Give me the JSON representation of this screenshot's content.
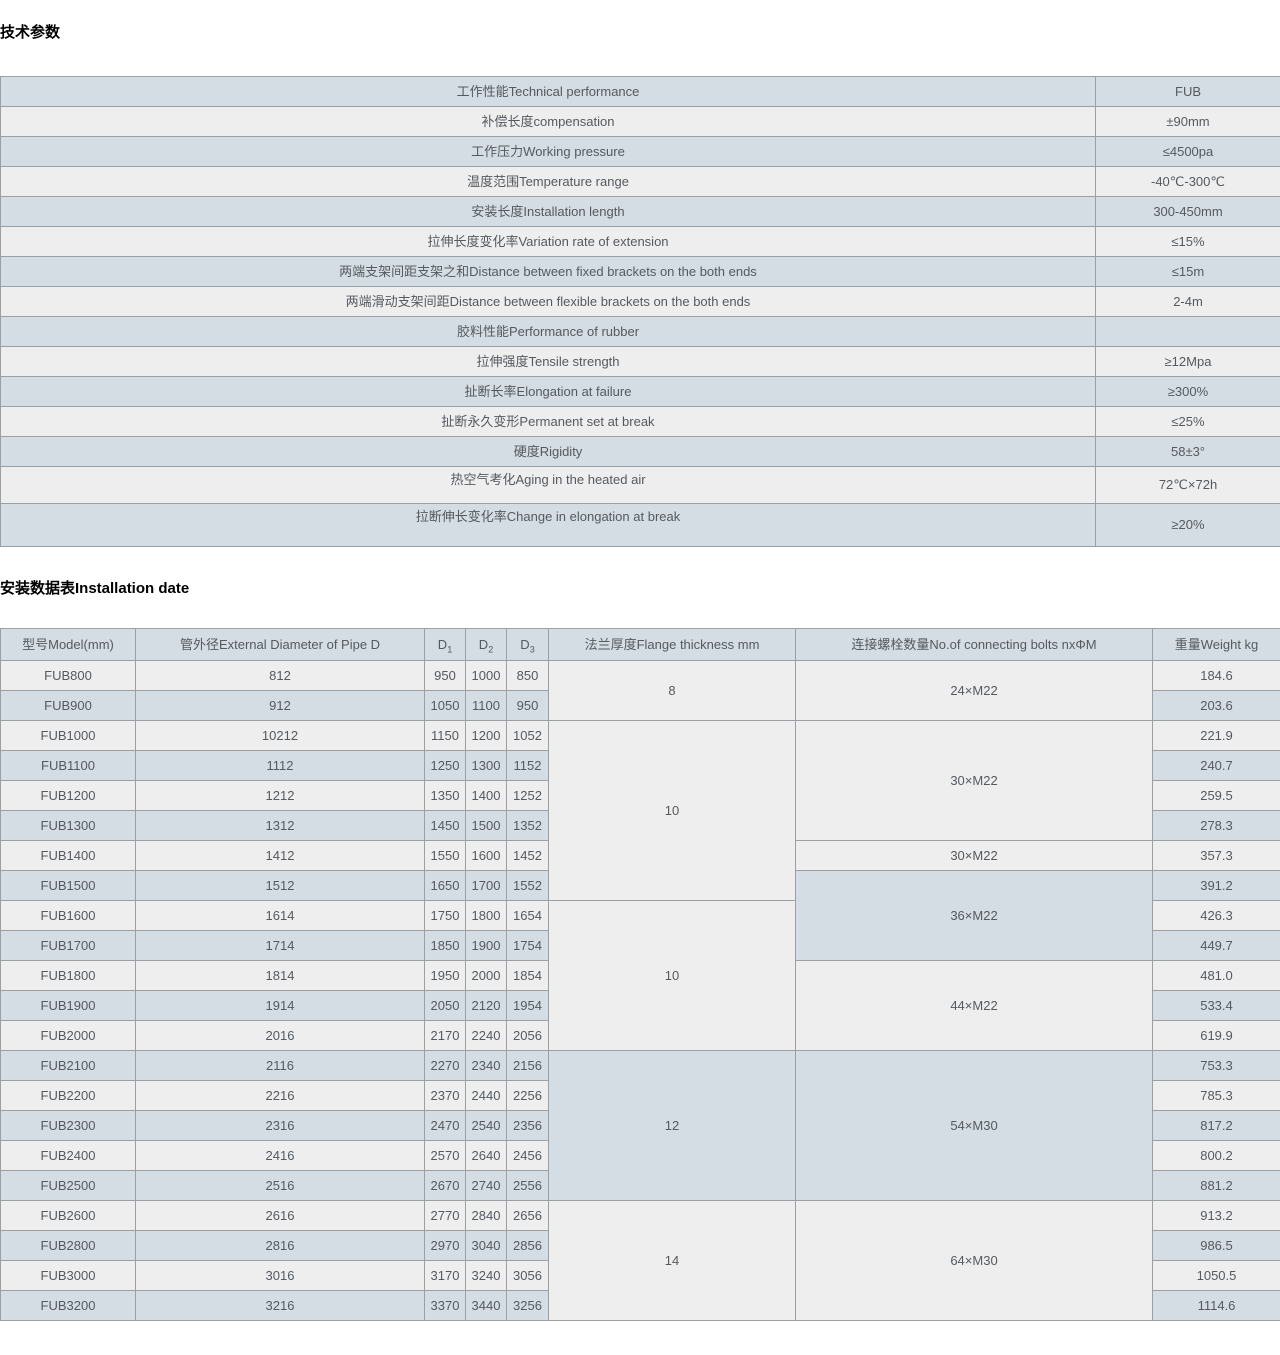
{
  "page": {
    "tech_title": "技术参数",
    "install_title": "安装数据表Installation date"
  },
  "colors": {
    "row_blue": "#d3dde3",
    "row_light": "#eeeeee",
    "border": "#9aa0a4",
    "text": "#555a5f"
  },
  "tech_table": {
    "rows": [
      {
        "label": "工作性能Technical performance",
        "value": "FUB"
      },
      {
        "label": "补偿长度compensation",
        "value": "±90mm"
      },
      {
        "label": "工作压力Working pressure",
        "value": "≤4500pa"
      },
      {
        "label": "温度范围Temperature range",
        "value": "-40℃-300℃"
      },
      {
        "label": "安装长度Installation length",
        "value": "300-450mm"
      },
      {
        "label": "拉伸长度变化率Variation rate of extension",
        "value": "≤15%"
      },
      {
        "label": "两端支架间距支架之和Distance between fixed brackets on the both ends",
        "value": "≤15m"
      },
      {
        "label": "两端滑动支架间距Distance between flexible brackets on the both ends",
        "value": "2-4m"
      },
      {
        "label": "胶料性能Performance of rubber",
        "value": ""
      },
      {
        "label": "拉伸强度Tensile strength",
        "value": "≥12Mpa"
      },
      {
        "label": "扯断长率Elongation at failure",
        "value": "≥300%"
      },
      {
        "label": "扯断永久变形Permanent set at break",
        "value": "≤25%"
      },
      {
        "label": "硬度Rigidity",
        "value": "58±3°"
      },
      {
        "label": "热空气考化Aging in the heated air",
        "value": "72℃×72h"
      },
      {
        "label": "拉断伸长变化率Change in elongation at break",
        "value": "≥20%"
      }
    ]
  },
  "install_table": {
    "columns": [
      "型号Model(mm)",
      "管外径External Diameter of Pipe D",
      "D1",
      "D2",
      "D3",
      "法兰厚度Flange thickness mm",
      "连接螺栓数量No.of connecting bolts nxΦM",
      "重量Weight kg"
    ],
    "rows": [
      {
        "model": "FUB800",
        "pipe_d": "812",
        "d1": "950",
        "d2": "1000",
        "d3": "850",
        "weight": "184.6"
      },
      {
        "model": "FUB900",
        "pipe_d": "912",
        "d1": "1050",
        "d2": "1100",
        "d3": "950",
        "weight": "203.6"
      },
      {
        "model": "FUB1000",
        "pipe_d": "10212",
        "d1": "1150",
        "d2": "1200",
        "d3": "1052",
        "weight": "221.9"
      },
      {
        "model": "FUB1100",
        "pipe_d": "1112",
        "d1": "1250",
        "d2": "1300",
        "d3": "1152",
        "weight": "240.7"
      },
      {
        "model": "FUB1200",
        "pipe_d": "1212",
        "d1": "1350",
        "d2": "1400",
        "d3": "1252",
        "weight": "259.5"
      },
      {
        "model": "FUB1300",
        "pipe_d": "1312",
        "d1": "1450",
        "d2": "1500",
        "d3": "1352",
        "weight": "278.3"
      },
      {
        "model": "FUB1400",
        "pipe_d": "1412",
        "d1": "1550",
        "d2": "1600",
        "d3": "1452",
        "weight": "357.3"
      },
      {
        "model": "FUB1500",
        "pipe_d": "1512",
        "d1": "1650",
        "d2": "1700",
        "d3": "1552",
        "weight": "391.2"
      },
      {
        "model": "FUB1600",
        "pipe_d": "1614",
        "d1": "1750",
        "d2": "1800",
        "d3": "1654",
        "weight": "426.3"
      },
      {
        "model": "FUB1700",
        "pipe_d": "1714",
        "d1": "1850",
        "d2": "1900",
        "d3": "1754",
        "weight": "449.7"
      },
      {
        "model": "FUB1800",
        "pipe_d": "1814",
        "d1": "1950",
        "d2": "2000",
        "d3": "1854",
        "weight": "481.0"
      },
      {
        "model": "FUB1900",
        "pipe_d": "1914",
        "d1": "2050",
        "d2": "2120",
        "d3": "1954",
        "weight": "533.4"
      },
      {
        "model": "FUB2000",
        "pipe_d": "2016",
        "d1": "2170",
        "d2": "2240",
        "d3": "2056",
        "weight": "619.9"
      },
      {
        "model": "FUB2100",
        "pipe_d": "2116",
        "d1": "2270",
        "d2": "2340",
        "d3": "2156",
        "weight": "753.3"
      },
      {
        "model": "FUB2200",
        "pipe_d": "2216",
        "d1": "2370",
        "d2": "2440",
        "d3": "2256",
        "weight": "785.3"
      },
      {
        "model": "FUB2300",
        "pipe_d": "2316",
        "d1": "2470",
        "d2": "2540",
        "d3": "2356",
        "weight": "817.2"
      },
      {
        "model": "FUB2400",
        "pipe_d": "2416",
        "d1": "2570",
        "d2": "2640",
        "d3": "2456",
        "weight": "800.2"
      },
      {
        "model": "FUB2500",
        "pipe_d": "2516",
        "d1": "2670",
        "d2": "2740",
        "d3": "2556",
        "weight": "881.2"
      },
      {
        "model": "FUB2600",
        "pipe_d": "2616",
        "d1": "2770",
        "d2": "2840",
        "d3": "2656",
        "weight": "913.2"
      },
      {
        "model": "FUB2800",
        "pipe_d": "2816",
        "d1": "2970",
        "d2": "3040",
        "d3": "2856",
        "weight": "986.5"
      },
      {
        "model": "FUB3000",
        "pipe_d": "3016",
        "d1": "3170",
        "d2": "3240",
        "d3": "3056",
        "weight": "1050.5"
      },
      {
        "model": "FUB3200",
        "pipe_d": "3216",
        "d1": "3370",
        "d2": "3440",
        "d3": "3256",
        "weight": "1114.6"
      }
    ],
    "flange_groups": [
      {
        "value": "8",
        "span": 2,
        "shade": "light"
      },
      {
        "value": "10",
        "span": 6,
        "shade": "light"
      },
      {
        "value": "10",
        "span": 5,
        "shade": "light"
      },
      {
        "value": "12",
        "span": 5,
        "shade": "blue"
      },
      {
        "value": "14",
        "span": 4,
        "shade": "light"
      }
    ],
    "bolt_groups": [
      {
        "value": "24×M22",
        "span": 2,
        "shade": "light"
      },
      {
        "value": "30×M22",
        "span": 4,
        "shade": "light"
      },
      {
        "value": "30×M22",
        "span": 1,
        "shade": "light"
      },
      {
        "value": "36×M22",
        "span": 3,
        "shade": "blue"
      },
      {
        "value": "44×M22",
        "span": 3,
        "shade": "light"
      },
      {
        "value": "54×M30",
        "span": 5,
        "shade": "blue"
      },
      {
        "value": "64×M30",
        "span": 4,
        "shade": "light"
      }
    ]
  }
}
